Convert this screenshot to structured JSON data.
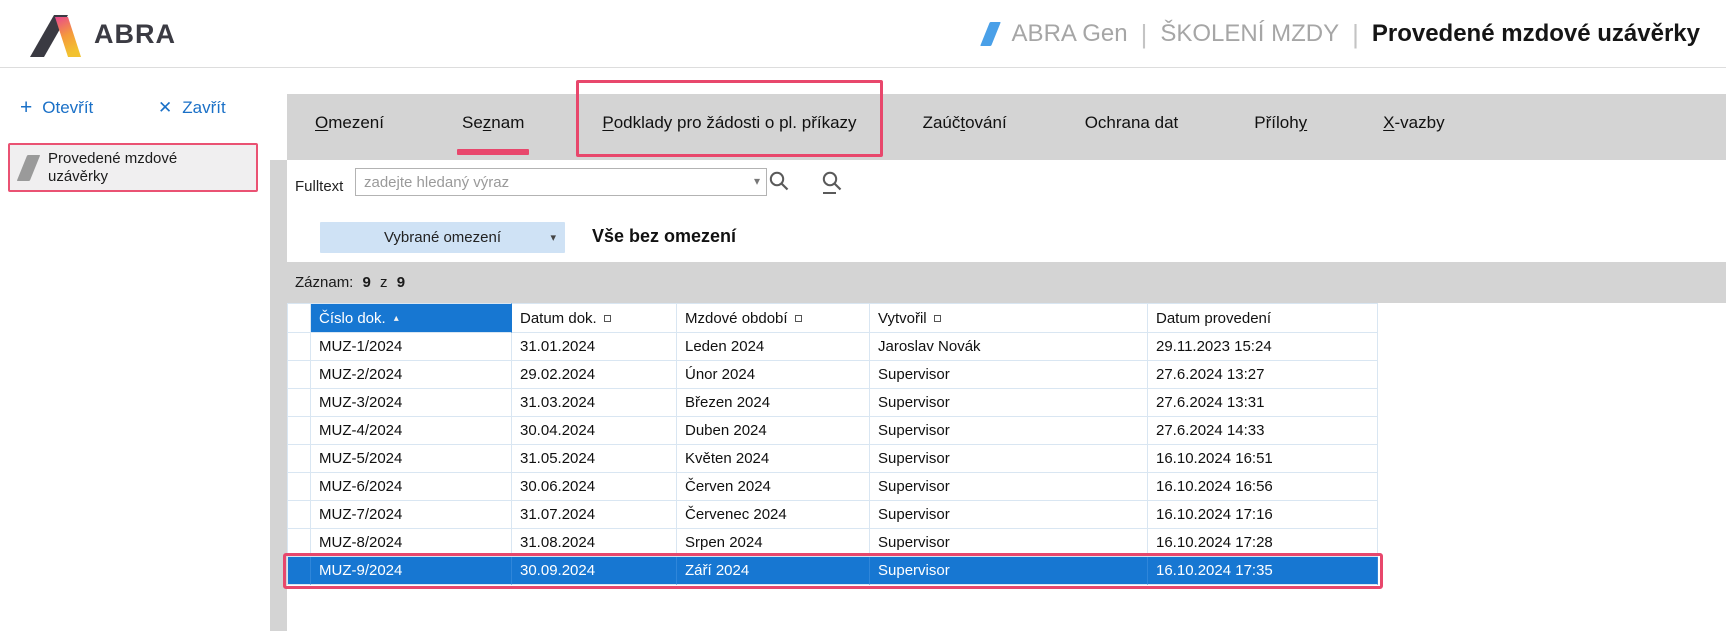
{
  "header": {
    "logo_text": "ABRA",
    "breadcrumb": {
      "app": "ABRA Gen",
      "separator": "|",
      "agenda": "ŠKOLENÍ MZDY",
      "page": "Provedené mzdové uzávěrky"
    }
  },
  "sidebar": {
    "open_label": "Otevřít",
    "open_glyph": "+",
    "close_label": "Zavřít",
    "close_glyph": "✕",
    "selected_item": "Provedené mzdové uzávěrky"
  },
  "tabs": [
    {
      "label": "Omezení",
      "mnemonic": 0,
      "active": false,
      "annotated": false
    },
    {
      "label": "Seznam",
      "mnemonic": 2,
      "active": true,
      "annotated": false
    },
    {
      "label": "Podklady pro žádosti o pl. příkazy",
      "mnemonic": 0,
      "active": false,
      "annotated": true
    },
    {
      "label": "Zaúčtování",
      "mnemonic": 4,
      "active": false,
      "annotated": false
    },
    {
      "label": "Ochrana dat",
      "mnemonic": -1,
      "active": false,
      "annotated": false
    },
    {
      "label": "Přílohy",
      "mnemonic": 6,
      "active": false,
      "annotated": false
    },
    {
      "label": "X-vazby",
      "mnemonic": 0,
      "active": false,
      "annotated": false
    }
  ],
  "filter": {
    "fulltext_label": "Fulltext",
    "fulltext_value": "",
    "fulltext_placeholder": "zadejte hledaný výraz",
    "combo_arrow": "▾",
    "restriction_button": "Vybrané omezení",
    "restriction_arrow": "▾",
    "restriction_value": "Vše bez omezení"
  },
  "record_counter": {
    "label": "Záznam:",
    "current": "9",
    "of_word": "z",
    "total": "9"
  },
  "table": {
    "columns": [
      {
        "label": "Číslo dok.",
        "sort": "asc",
        "sort_box": false
      },
      {
        "label": "Datum dok.",
        "sort": null,
        "sort_box": true
      },
      {
        "label": "Mzdové období",
        "sort": null,
        "sort_box": true
      },
      {
        "label": "Vytvořil",
        "sort": null,
        "sort_box": true
      },
      {
        "label": "Datum provedení",
        "sort": null,
        "sort_box": false
      }
    ],
    "sort_asc_glyph": "▴",
    "rows": [
      [
        "MUZ-1/2024",
        "31.01.2024",
        "Leden 2024",
        "Jaroslav Novák",
        "29.11.2023 15:24"
      ],
      [
        "MUZ-2/2024",
        "29.02.2024",
        "Únor 2024",
        "Supervisor",
        "27.6.2024 13:27"
      ],
      [
        "MUZ-3/2024",
        "31.03.2024",
        "Březen 2024",
        "Supervisor",
        "27.6.2024 13:31"
      ],
      [
        "MUZ-4/2024",
        "30.04.2024",
        "Duben 2024",
        "Supervisor",
        "27.6.2024 14:33"
      ],
      [
        "MUZ-5/2024",
        "31.05.2024",
        "Květen 2024",
        "Supervisor",
        "16.10.2024 16:51"
      ],
      [
        "MUZ-6/2024",
        "30.06.2024",
        "Červen 2024",
        "Supervisor",
        "16.10.2024 16:56"
      ],
      [
        "MUZ-7/2024",
        "31.07.2024",
        "Červenec 2024",
        "Supervisor",
        "16.10.2024 17:16"
      ],
      [
        "MUZ-8/2024",
        "31.08.2024",
        "Srpen 2024",
        "Supervisor",
        "16.10.2024 17:28"
      ],
      [
        "MUZ-9/2024",
        "30.09.2024",
        "Září 2024",
        "Supervisor",
        "16.10.2024 17:35"
      ]
    ],
    "selected_row_index": 8
  },
  "colors": {
    "accent_blue": "#1777d2",
    "link_blue": "#1a70c7",
    "annotation_pink": "#e8476c",
    "tabbar_gray": "#d4d4d4",
    "restriction_blue": "#cfe2f5",
    "grid_line": "#d9e6f2",
    "breadcrumb_gray": "#a6a6a6",
    "logo_dark": "#3b3b43",
    "slash_blue": "#4aa0e8"
  }
}
